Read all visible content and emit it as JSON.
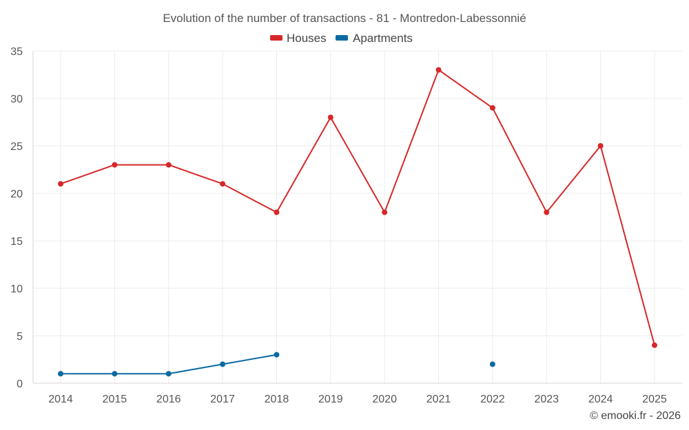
{
  "chart_data": {
    "type": "line",
    "title": "Evolution of the number of transactions - 81 - Montredon-Labessonnié",
    "xlabel": "",
    "ylabel": "",
    "categories": [
      "2014",
      "2015",
      "2016",
      "2017",
      "2018",
      "2019",
      "2020",
      "2021",
      "2022",
      "2023",
      "2024",
      "2025"
    ],
    "ylim": [
      0,
      35
    ],
    "yticks": [
      0,
      5,
      10,
      15,
      20,
      25,
      30,
      35
    ],
    "grid": true,
    "legend_position": "top-center",
    "series": [
      {
        "name": "Houses",
        "color": "#d62728",
        "values": [
          21,
          23,
          23,
          21,
          18,
          28,
          18,
          33,
          29,
          18,
          25,
          4
        ]
      },
      {
        "name": "Apartments",
        "color": "#0b6aa2",
        "values": [
          1,
          1,
          1,
          2,
          3,
          null,
          null,
          null,
          2,
          null,
          null,
          null
        ]
      }
    ]
  },
  "credit": "© emooki.fr - 2026"
}
